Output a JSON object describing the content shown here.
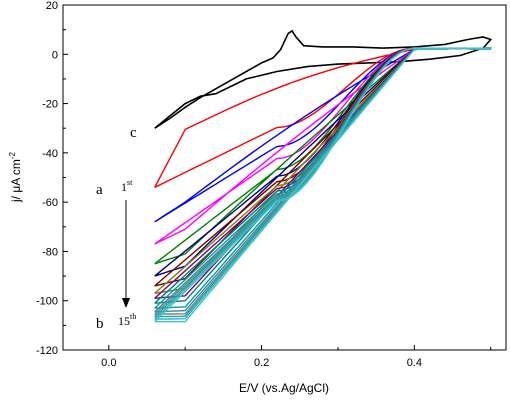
{
  "chart_data": {
    "type": "line",
    "xlabel": "E/V (vs.Ag/AgCl)",
    "ylabel": "j/ μA cm⁻²",
    "ylabel_parts": {
      "main": "j/ μA cm",
      "sup": "-2"
    },
    "xlim": [
      -0.06,
      0.52
    ],
    "ylim": [
      -120,
      20
    ],
    "x_ticks": [
      0.0,
      0.2,
      0.4
    ],
    "x_tick_labels": [
      "0.0",
      "0.2",
      "0.4"
    ],
    "y_ticks": [
      20,
      0,
      -20,
      -40,
      -60,
      -80,
      -100,
      -120
    ],
    "y_tick_labels": [
      "20",
      "0",
      "-20",
      "-40",
      "-60",
      "-80",
      "-100",
      "-120"
    ],
    "grid": false,
    "annotations": {
      "c": "c",
      "a": "a",
      "b": "b",
      "first_num": "1",
      "first_sup": "st",
      "last_num": "15",
      "last_sup": "th"
    },
    "curve_c": {
      "color": "#000000",
      "upper": [
        [
          0.06,
          -30
        ],
        [
          0.08,
          -26
        ],
        [
          0.1,
          -21.5
        ],
        [
          0.12,
          -17.5
        ],
        [
          0.14,
          -14
        ],
        [
          0.16,
          -10.5
        ],
        [
          0.18,
          -7
        ],
        [
          0.2,
          -3.5
        ],
        [
          0.215,
          -1.5
        ],
        [
          0.225,
          2
        ],
        [
          0.235,
          8.5
        ],
        [
          0.24,
          9.5
        ],
        [
          0.245,
          7
        ],
        [
          0.255,
          3.5
        ],
        [
          0.28,
          3
        ],
        [
          0.32,
          3
        ],
        [
          0.36,
          2.5
        ],
        [
          0.4,
          3
        ],
        [
          0.44,
          4
        ],
        [
          0.47,
          6
        ],
        [
          0.49,
          7
        ],
        [
          0.5,
          6
        ]
      ],
      "lower": [
        [
          0.5,
          6
        ],
        [
          0.49,
          2.5
        ],
        [
          0.46,
          -0.5
        ],
        [
          0.42,
          -2
        ],
        [
          0.38,
          -3
        ],
        [
          0.34,
          -3.5
        ],
        [
          0.3,
          -4
        ],
        [
          0.26,
          -5
        ],
        [
          0.22,
          -7
        ],
        [
          0.18,
          -10
        ],
        [
          0.14,
          -16
        ],
        [
          0.12,
          -17
        ],
        [
          0.1,
          -20
        ],
        [
          0.08,
          -25
        ],
        [
          0.06,
          -30
        ]
      ]
    },
    "series": [
      {
        "color": "#ff0000",
        "start": -54,
        "end": -30.5,
        "hump": 6.5
      },
      {
        "color": "#0000ff",
        "start": -68,
        "end": -60,
        "hump": 4
      },
      {
        "color": "#ff00ff",
        "start": -77,
        "end": -71,
        "hump": 3.5
      },
      {
        "color": "#008000",
        "start": -85,
        "end": -81,
        "hump": 2
      },
      {
        "color": "#000080",
        "start": -90,
        "end": -86,
        "hump": 1.5
      },
      {
        "color": "#800000",
        "start": -94,
        "end": -91,
        "hump": 1
      },
      {
        "color": "#808000",
        "start": -97,
        "end": -95,
        "hump": 1
      },
      {
        "color": "#800080",
        "start": -99,
        "end": -98,
        "hump": 0.5
      },
      {
        "color": "#008080",
        "start": -101,
        "end": -100,
        "hump": 0.5
      },
      {
        "color": "#00a0a0",
        "start": -103,
        "end": -102.5,
        "hump": 0.3
      },
      {
        "color": "#4080c0",
        "start": -104.5,
        "end": -104,
        "hump": 0
      },
      {
        "color": "#609060",
        "start": -105.5,
        "end": -105.3,
        "hump": 0
      },
      {
        "color": "#20a0b0",
        "start": -106.5,
        "end": -106.3,
        "hump": 0
      },
      {
        "color": "#30b0c0",
        "start": -107.5,
        "end": -107.3,
        "hump": 0
      },
      {
        "color": "#40c0c8",
        "start": -108.5,
        "end": -108.5,
        "hump": 0
      }
    ]
  }
}
